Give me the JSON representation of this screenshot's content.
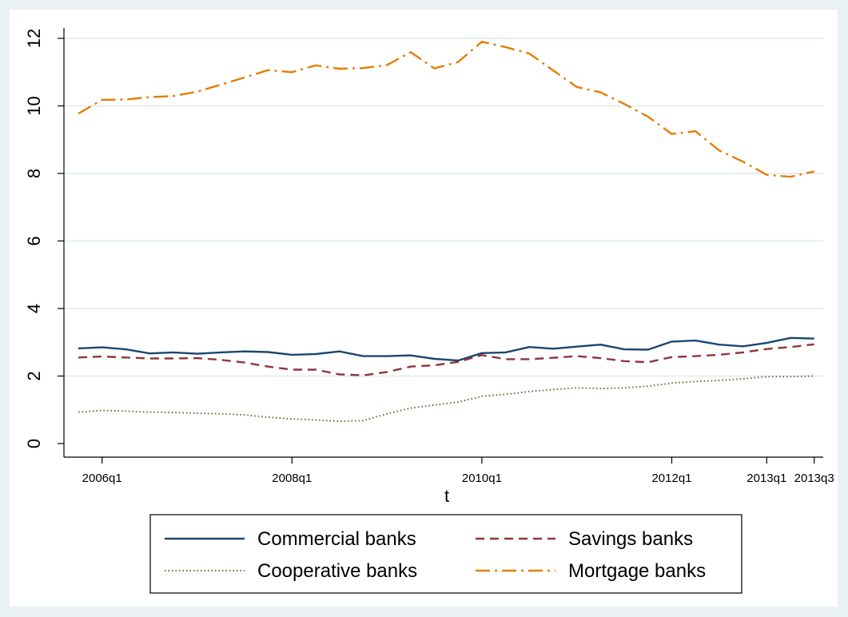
{
  "chart_data": {
    "type": "line",
    "xlabel": "t",
    "ylabel": "",
    "ylim": [
      0,
      12
    ],
    "xlim": [
      "2005q4",
      "2013q3"
    ],
    "y_ticks": [
      0,
      2,
      4,
      6,
      8,
      10,
      12
    ],
    "x_ticks": [
      "2006q1",
      "2008q1",
      "2010q1",
      "2012q1",
      "2013q1",
      "2013q3"
    ],
    "grid": "horizontal",
    "legend_position": "bottom",
    "x": [
      "2005q4",
      "2006q1",
      "2006q2",
      "2006q3",
      "2006q4",
      "2007q1",
      "2007q2",
      "2007q3",
      "2007q4",
      "2008q1",
      "2008q2",
      "2008q3",
      "2008q4",
      "2009q1",
      "2009q2",
      "2009q3",
      "2009q4",
      "2010q1",
      "2010q2",
      "2010q3",
      "2010q4",
      "2011q1",
      "2011q2",
      "2011q3",
      "2011q4",
      "2012q1",
      "2012q2",
      "2012q3",
      "2012q4",
      "2013q1",
      "2013q2",
      "2013q3"
    ],
    "series": [
      {
        "name": "Commercial banks",
        "color": "#1a476f",
        "dash": "solid",
        "values": [
          2.82,
          2.85,
          2.79,
          2.67,
          2.7,
          2.66,
          2.7,
          2.73,
          2.71,
          2.63,
          2.65,
          2.73,
          2.59,
          2.59,
          2.61,
          2.51,
          2.46,
          2.68,
          2.7,
          2.86,
          2.81,
          2.87,
          2.93,
          2.79,
          2.78,
          3.02,
          3.05,
          2.93,
          2.88,
          2.98,
          3.13,
          3.11
        ]
      },
      {
        "name": "Savings banks",
        "color": "#90353b",
        "dash": "dash",
        "values": [
          2.55,
          2.58,
          2.55,
          2.52,
          2.52,
          2.53,
          2.48,
          2.4,
          2.28,
          2.19,
          2.19,
          2.05,
          2.02,
          2.12,
          2.28,
          2.32,
          2.42,
          2.62,
          2.5,
          2.5,
          2.54,
          2.59,
          2.53,
          2.44,
          2.41,
          2.56,
          2.59,
          2.63,
          2.7,
          2.8,
          2.86,
          2.94
        ]
      },
      {
        "name": "Cooperative banks",
        "color": "#55752f",
        "dash": "dot",
        "values": [
          0.93,
          0.98,
          0.96,
          0.93,
          0.92,
          0.9,
          0.88,
          0.85,
          0.78,
          0.73,
          0.7,
          0.66,
          0.68,
          0.88,
          1.05,
          1.14,
          1.23,
          1.4,
          1.46,
          1.54,
          1.6,
          1.65,
          1.63,
          1.65,
          1.7,
          1.79,
          1.84,
          1.87,
          1.92,
          1.98,
          1.98,
          2.0
        ]
      },
      {
        "name": "Mortgage banks",
        "color": "#e37e00",
        "dash": "dashdot",
        "values": [
          9.77,
          10.18,
          10.19,
          10.26,
          10.29,
          10.42,
          10.63,
          10.84,
          11.06,
          11.0,
          11.2,
          11.1,
          11.12,
          11.21,
          11.59,
          11.11,
          11.3,
          11.9,
          11.74,
          11.55,
          11.05,
          10.56,
          10.4,
          10.06,
          9.68,
          9.17,
          9.25,
          8.68,
          8.35,
          7.96,
          7.9,
          8.06
        ]
      }
    ]
  }
}
